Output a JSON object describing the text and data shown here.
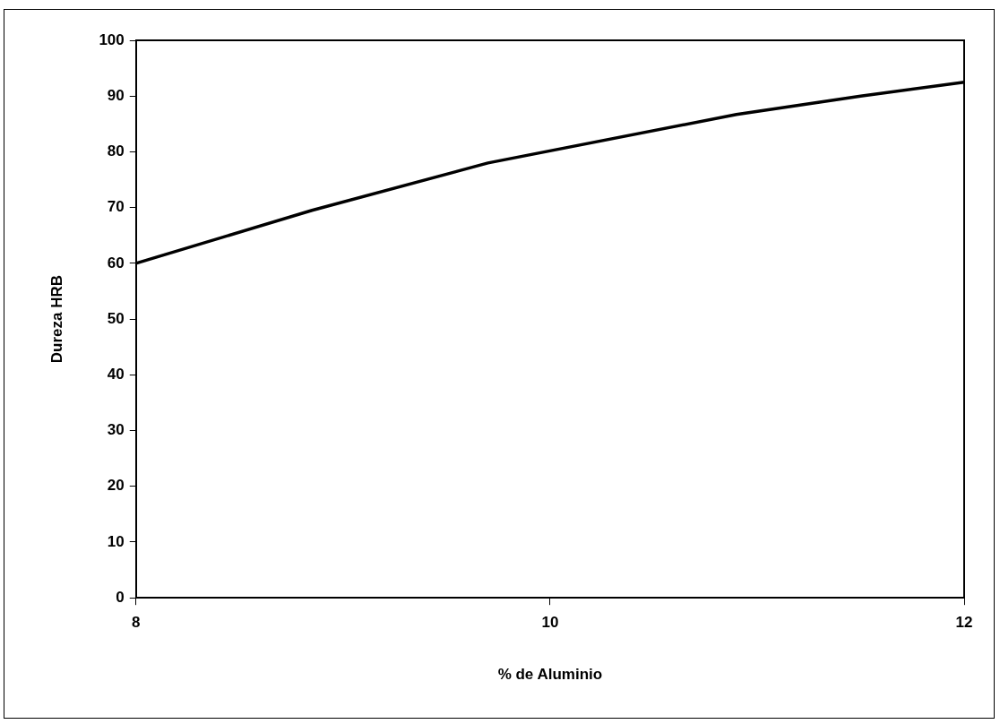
{
  "chart_data": {
    "type": "line",
    "xlabel": "% de Aluminio",
    "ylabel": "Dureza HRB",
    "x": [
      8,
      8.85,
      9.7,
      10.9,
      11.5,
      12
    ],
    "series": [
      {
        "color": "#000000",
        "values": [
          60,
          69.5,
          78,
          86.7,
          90,
          92.5
        ]
      }
    ],
    "xlim": [
      8,
      12
    ],
    "xticks": [
      8,
      10,
      12
    ],
    "ylim": [
      0,
      100
    ],
    "yticks": [
      0,
      10,
      20,
      30,
      40,
      50,
      60,
      70,
      80,
      90,
      100
    ],
    "grid": false,
    "legend": false,
    "marker": "none",
    "line_style": "solid"
  }
}
